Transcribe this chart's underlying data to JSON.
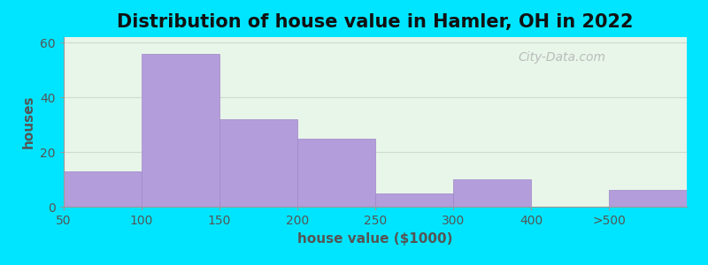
{
  "title": "Distribution of house value in Hamler, OH in 2022",
  "xlabel": "house value ($1000)",
  "ylabel": "houses",
  "tick_labels": [
    "50",
    "100",
    "150",
    "200",
    "250",
    "300",
    "400",
    ">500"
  ],
  "bar_values": [
    13,
    56,
    32,
    25,
    5,
    10,
    0,
    6
  ],
  "bar_color": "#b39ddb",
  "bar_edgecolor": "#9e86c8",
  "bg_color": "#e8f5e9",
  "outer_bg": "#00e5ff",
  "title_fontsize": 15,
  "axis_label_fontsize": 11,
  "tick_fontsize": 10,
  "ylim": [
    0,
    62
  ],
  "yticks": [
    0,
    20,
    40,
    60
  ],
  "watermark_text": "City-Data.com",
  "grid_color": "#ccddcc",
  "spine_color": "#999999"
}
